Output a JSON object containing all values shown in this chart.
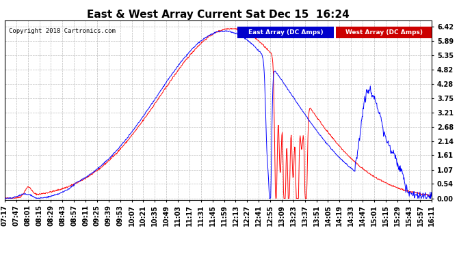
{
  "title": "East & West Array Current Sat Dec 15  16:24",
  "copyright": "Copyright 2018 Cartronics.com",
  "legend_east": "East Array (DC Amps)",
  "legend_west": "West Array (DC Amps)",
  "east_color": "#0000FF",
  "west_color": "#FF0000",
  "legend_east_bg": "#0000CC",
  "legend_west_bg": "#CC0000",
  "yticks": [
    0.0,
    0.54,
    1.07,
    1.61,
    2.14,
    2.68,
    3.21,
    3.75,
    4.28,
    4.82,
    5.35,
    5.89,
    6.42
  ],
  "ylim": [
    -0.05,
    6.65
  ],
  "background_color": "#ffffff",
  "grid_color": "#bbbbbb",
  "title_fontsize": 11,
  "tick_fontsize": 7
}
